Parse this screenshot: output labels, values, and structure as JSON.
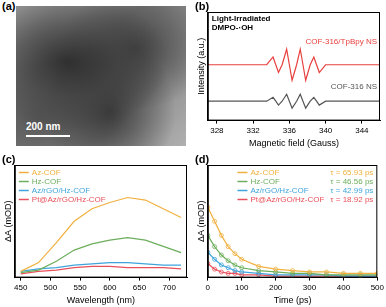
{
  "chart_data": [
    {
      "type": "image",
      "label": "(a)",
      "annotations": [
        "200 nm"
      ]
    },
    {
      "type": "line",
      "label": "(b)",
      "x_label": "Magnetic field (Gauss)",
      "y_label": "Intensity (a.u.)",
      "annotations": [
        "Light-Irradiated",
        "DMPO-·OH"
      ],
      "x": [
        327,
        330,
        332,
        333.5,
        334.2,
        334.5,
        334.8,
        335.2,
        335.7,
        336.0,
        336.3,
        336.8,
        337.2,
        337.5,
        337.8,
        338.3,
        338.7,
        339.0,
        339.3,
        340,
        342,
        346
      ],
      "series": [
        {
          "name": "COF-316/TpBpy NS",
          "color": "#e8403f",
          "values": [
            0.72,
            0.72,
            0.72,
            0.72,
            0.82,
            0.72,
            0.62,
            0.72,
            0.92,
            0.72,
            0.52,
            0.72,
            0.92,
            0.72,
            0.52,
            0.72,
            0.82,
            0.72,
            0.62,
            0.72,
            0.72,
            0.72
          ]
        },
        {
          "name": "COF-316 NS",
          "color": "#555555",
          "values": [
            0.25,
            0.25,
            0.25,
            0.25,
            0.3,
            0.25,
            0.2,
            0.25,
            0.34,
            0.25,
            0.16,
            0.25,
            0.34,
            0.25,
            0.16,
            0.25,
            0.3,
            0.25,
            0.2,
            0.25,
            0.25,
            0.25
          ]
        }
      ],
      "xlim": [
        327,
        346
      ],
      "xticks": [
        328,
        332,
        336,
        340,
        344
      ],
      "ylim": [
        0,
        1.4
      ],
      "tick_labels": "x",
      "grid": false
    },
    {
      "type": "line",
      "label": "(c)",
      "x_label": "Wavelength (nm)",
      "y_label": "ΔA (mOD)",
      "x": [
        450,
        480,
        510,
        540,
        570,
        600,
        630,
        660,
        690,
        720
      ],
      "series": [
        {
          "name": "Az-COF",
          "color": "#f0b03f",
          "values": [
            0.05,
            0.12,
            0.28,
            0.45,
            0.55,
            0.6,
            0.64,
            0.62,
            0.55,
            0.48
          ]
        },
        {
          "name": "Hz-COF",
          "color": "#6cae5c",
          "values": [
            0.04,
            0.06,
            0.13,
            0.22,
            0.27,
            0.3,
            0.32,
            0.3,
            0.25,
            0.2
          ]
        },
        {
          "name": "Az/rGO/Hz-COF",
          "color": "#3fa4dc",
          "values": [
            0.05,
            0.07,
            0.08,
            0.1,
            0.11,
            0.12,
            0.12,
            0.11,
            0.1,
            0.1
          ]
        },
        {
          "name": "Pt@Az/rGO/Hz-COF",
          "color": "#e8505b",
          "values": [
            0.03,
            0.05,
            0.06,
            0.08,
            0.09,
            0.09,
            0.08,
            0.08,
            0.08,
            0.07
          ]
        }
      ],
      "xlim": [
        440,
        730
      ],
      "xticks": [
        450,
        500,
        550,
        600,
        650,
        700
      ],
      "ylim": [
        0,
        0.9
      ],
      "tick_labels": "x",
      "grid": false,
      "legend": "upper left"
    },
    {
      "type": "line",
      "label": "(d)",
      "x_label": "Time (ps)",
      "y_label": "ΔA (mOD)",
      "x": [
        0,
        20,
        40,
        60,
        80,
        100,
        150,
        200,
        250,
        300,
        350,
        400,
        450,
        500
      ],
      "series": [
        {
          "name": "Az-COF",
          "color": "#f0b03f",
          "marker": "circle",
          "values": [
            0.5,
            0.4,
            0.3,
            0.22,
            0.17,
            0.13,
            0.08,
            0.06,
            0.05,
            0.04,
            0.04,
            0.03,
            0.03,
            0.03
          ]
        },
        {
          "name": "Hz-COF",
          "color": "#6cae5c",
          "marker": "circle",
          "values": [
            0.3,
            0.22,
            0.16,
            0.12,
            0.09,
            0.07,
            0.05,
            0.04,
            0.03,
            0.03,
            0.02,
            0.02,
            0.02,
            0.02
          ]
        },
        {
          "name": "Az/rGO/Hz-COF",
          "color": "#3fa4dc",
          "marker": "circle",
          "values": [
            0.18,
            0.13,
            0.09,
            0.07,
            0.05,
            0.04,
            0.03,
            0.02,
            0.02,
            0.02,
            0.02,
            0.01,
            0.01,
            0.01
          ]
        },
        {
          "name": "Pt@Az/rGO/Hz-COF",
          "color": "#e8505b",
          "marker": "circle",
          "values": [
            0.1,
            0.06,
            0.04,
            0.03,
            0.03,
            0.02,
            0.02,
            0.01,
            0.01,
            0.01,
            0.01,
            0.01,
            0.01,
            0.01
          ]
        }
      ],
      "annotations": [
        {
          "text": "τ = 65.93 ps",
          "color": "#f0b03f"
        },
        {
          "text": "τ = 46.56 ps",
          "color": "#6cae5c"
        },
        {
          "text": "τ = 42.99 ps",
          "color": "#3fa4dc"
        },
        {
          "text": "τ = 18.92 ps",
          "color": "#e8505b"
        }
      ],
      "xlim": [
        0,
        500
      ],
      "xticks": [
        0,
        100,
        200,
        300,
        400,
        500
      ],
      "ylim": [
        0,
        0.8
      ],
      "tick_labels": "x",
      "grid": false,
      "legend": "upper right"
    }
  ]
}
